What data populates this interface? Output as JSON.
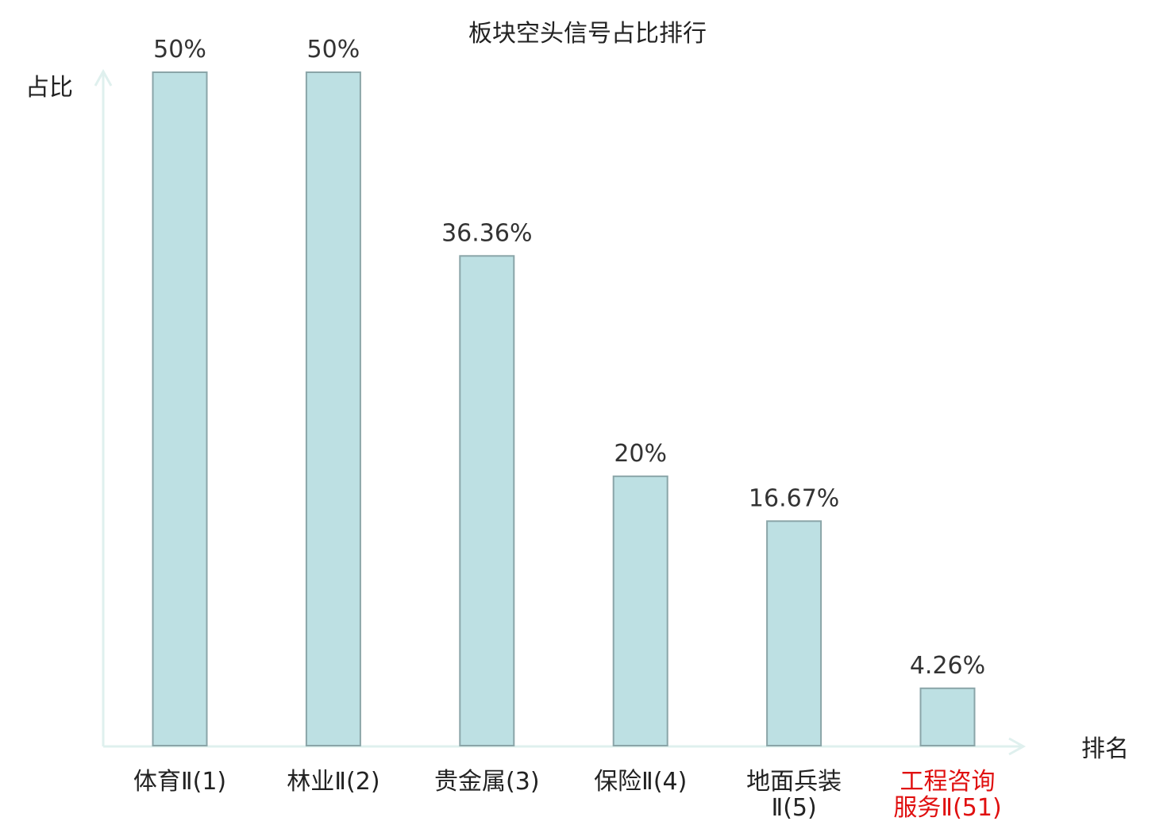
{
  "chart_data": {
    "type": "bar",
    "title": "板块空头信号占比排行",
    "ylabel": "占比",
    "xlabel": "排名",
    "ylim": [
      0,
      50
    ],
    "grid": false,
    "categories": [
      [
        "体育Ⅱ(1)"
      ],
      [
        "林业Ⅱ(2)"
      ],
      [
        "贵金属(3)"
      ],
      [
        "保险Ⅱ(4)"
      ],
      [
        "地面兵装",
        "Ⅱ(5)"
      ],
      [
        "工程咨询",
        "服务Ⅱ(51)"
      ]
    ],
    "values": [
      50,
      50,
      36.36,
      20,
      16.67,
      4.26
    ],
    "value_labels": [
      "50%",
      "50%",
      "36.36%",
      "20%",
      "16.67%",
      "4.26%"
    ],
    "highlight_index": 5,
    "colors": {
      "bar_fill": "#bde0e3",
      "bar_stroke": "#8aa5a8",
      "axis": "#dff0ee",
      "text": "#222222",
      "value_label": "#333333",
      "highlight_text": "#e01010"
    }
  }
}
